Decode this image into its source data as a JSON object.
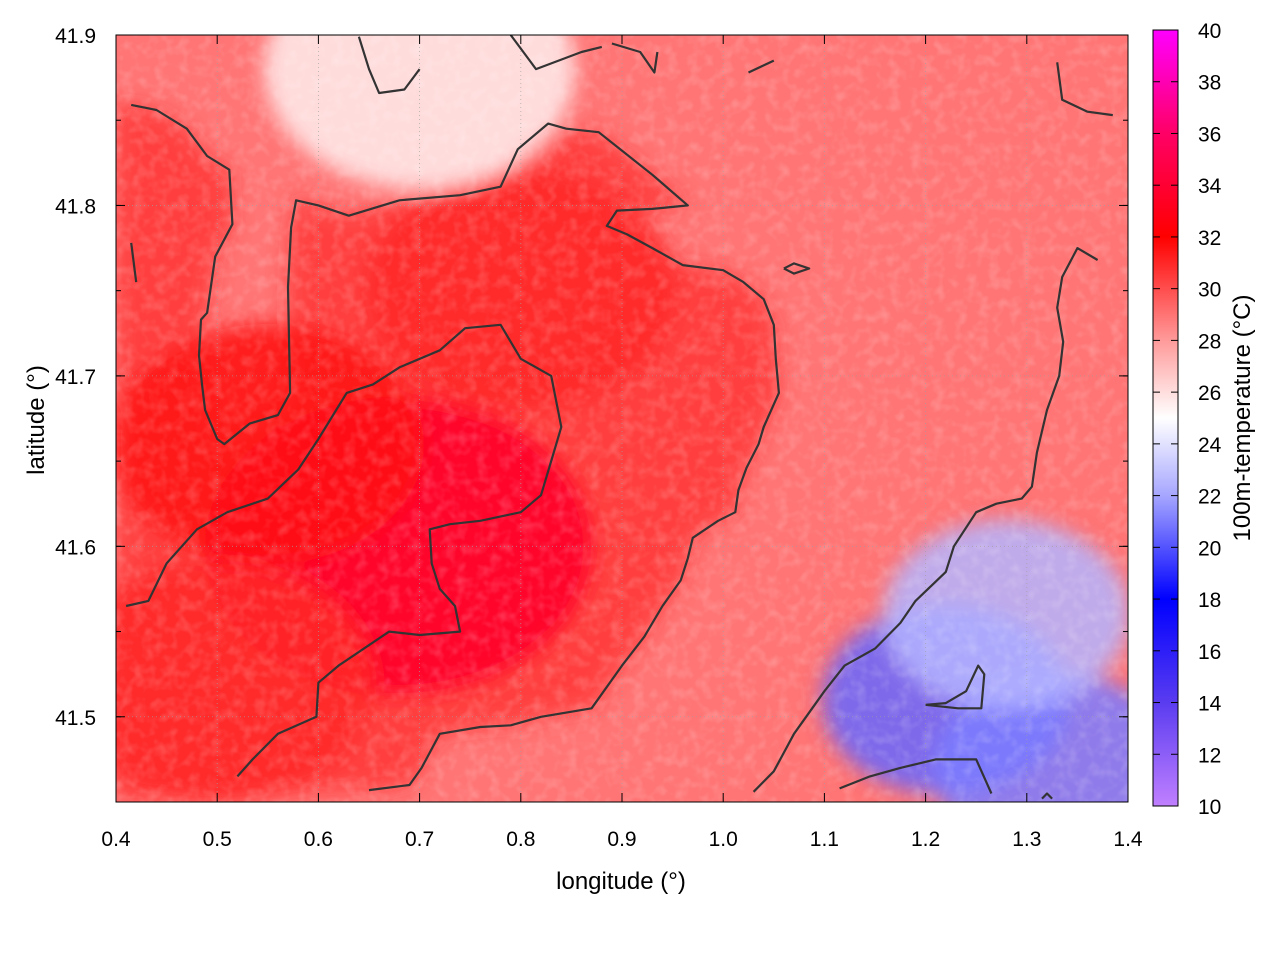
{
  "chart_data": {
    "type": "heatmap",
    "xlabel": "longitude (°)",
    "ylabel": "latitude (°)",
    "colorbar_label": "100m-temperature (°C)",
    "xlim": [
      0.4,
      1.4
    ],
    "ylim": [
      41.45,
      41.9
    ],
    "x_ticks": [
      "0.4",
      "0.5",
      "0.6",
      "0.7",
      "0.8",
      "0.9",
      "1.0",
      "1.1",
      "1.2",
      "1.3",
      "1.4"
    ],
    "y_ticks": [
      "41.5",
      "41.6",
      "41.7",
      "41.8",
      "41.9"
    ],
    "colorbar_range": [
      10,
      40
    ],
    "colorbar_ticks": [
      "10",
      "12",
      "14",
      "16",
      "18",
      "20",
      "22",
      "24",
      "26",
      "28",
      "30",
      "32",
      "34",
      "36",
      "38",
      "40"
    ],
    "colorbar_stops": [
      {
        "value": 10,
        "color": "#c080ff"
      },
      {
        "value": 14,
        "color": "#5a3cf0"
      },
      {
        "value": 18,
        "color": "#0000ff"
      },
      {
        "value": 22,
        "color": "#a6a6ff"
      },
      {
        "value": 25,
        "color": "#ffffff"
      },
      {
        "value": 28,
        "color": "#ff9a9a"
      },
      {
        "value": 32,
        "color": "#ff0000"
      },
      {
        "value": 36,
        "color": "#ff0066"
      },
      {
        "value": 40,
        "color": "#ff00ff"
      }
    ],
    "grid": true,
    "field_hotspots": [
      {
        "lon": 0.68,
        "lat": 41.6,
        "temp": 33.5
      },
      {
        "lon": 0.55,
        "lat": 41.66,
        "temp": 31.5
      },
      {
        "lon": 0.8,
        "lat": 41.75,
        "temp": 31.0
      },
      {
        "lon": 0.5,
        "lat": 41.52,
        "temp": 31.0
      },
      {
        "lon": 1.22,
        "lat": 41.51,
        "temp": 20.5
      },
      {
        "lon": 1.33,
        "lat": 41.47,
        "temp": 21.0
      },
      {
        "lon": 1.28,
        "lat": 41.56,
        "temp": 22.5
      },
      {
        "lon": 0.7,
        "lat": 41.88,
        "temp": 25.5
      }
    ],
    "contours": [
      [
        [
          0.415,
          41.859
        ],
        [
          0.44,
          41.856
        ],
        [
          0.47,
          41.845
        ],
        [
          0.49,
          41.829
        ],
        [
          0.512,
          41.821
        ],
        [
          0.515,
          41.789
        ],
        [
          0.498,
          41.77
        ],
        [
          0.49,
          41.737
        ],
        [
          0.484,
          41.733
        ],
        [
          0.482,
          41.712
        ],
        [
          0.485,
          41.695
        ],
        [
          0.488,
          41.68
        ],
        [
          0.5,
          41.663
        ],
        [
          0.507,
          41.66
        ],
        [
          0.532,
          41.672
        ],
        [
          0.56,
          41.677
        ],
        [
          0.572,
          41.69
        ],
        [
          0.57,
          41.752
        ],
        [
          0.573,
          41.787
        ],
        [
          0.578,
          41.803
        ],
        [
          0.6,
          41.8
        ],
        [
          0.63,
          41.794
        ],
        [
          0.68,
          41.803
        ],
        [
          0.74,
          41.806
        ],
        [
          0.78,
          41.811
        ],
        [
          0.797,
          41.833
        ],
        [
          0.827,
          41.848
        ],
        [
          0.845,
          41.845
        ],
        [
          0.877,
          41.843
        ],
        [
          0.93,
          41.818
        ],
        [
          0.965,
          41.8
        ],
        [
          0.93,
          41.798
        ],
        [
          0.895,
          41.797
        ],
        [
          0.885,
          41.788
        ],
        [
          0.905,
          41.783
        ],
        [
          0.93,
          41.775
        ],
        [
          0.96,
          41.765
        ],
        [
          1.0,
          41.762
        ],
        [
          1.02,
          41.755
        ],
        [
          1.04,
          41.745
        ],
        [
          1.05,
          41.73
        ],
        [
          1.052,
          41.71
        ],
        [
          1.055,
          41.69
        ],
        [
          1.04,
          41.67
        ],
        [
          1.035,
          41.66
        ],
        [
          1.023,
          41.646
        ],
        [
          1.015,
          41.633
        ],
        [
          1.012,
          41.62
        ],
        [
          0.995,
          41.615
        ],
        [
          0.97,
          41.605
        ],
        [
          0.965,
          41.593
        ],
        [
          0.958,
          41.58
        ],
        [
          0.94,
          41.565
        ],
        [
          0.922,
          41.547
        ],
        [
          0.9,
          41.53
        ],
        [
          0.87,
          41.505
        ],
        [
          0.82,
          41.5
        ],
        [
          0.79,
          41.495
        ],
        [
          0.76,
          41.494
        ],
        [
          0.72,
          41.49
        ],
        [
          0.702,
          41.47
        ],
        [
          0.69,
          41.46
        ],
        [
          0.65,
          41.457
        ]
      ],
      [
        [
          0.41,
          41.565
        ],
        [
          0.432,
          41.568
        ],
        [
          0.45,
          41.59
        ],
        [
          0.48,
          41.61
        ],
        [
          0.51,
          41.62
        ],
        [
          0.55,
          41.628
        ],
        [
          0.58,
          41.645
        ],
        [
          0.6,
          41.663
        ],
        [
          0.628,
          41.69
        ],
        [
          0.654,
          41.695
        ],
        [
          0.68,
          41.705
        ],
        [
          0.72,
          41.715
        ],
        [
          0.745,
          41.728
        ],
        [
          0.78,
          41.73
        ],
        [
          0.8,
          41.71
        ],
        [
          0.83,
          41.7
        ],
        [
          0.84,
          41.67
        ],
        [
          0.83,
          41.65
        ],
        [
          0.82,
          41.63
        ],
        [
          0.8,
          41.62
        ],
        [
          0.76,
          41.615
        ],
        [
          0.73,
          41.613
        ],
        [
          0.71,
          41.61
        ],
        [
          0.712,
          41.59
        ],
        [
          0.72,
          41.575
        ],
        [
          0.735,
          41.565
        ],
        [
          0.74,
          41.55
        ],
        [
          0.7,
          41.548
        ],
        [
          0.67,
          41.55
        ],
        [
          0.645,
          41.54
        ],
        [
          0.62,
          41.53
        ],
        [
          0.6,
          41.52
        ],
        [
          0.598,
          41.5
        ],
        [
          0.56,
          41.49
        ],
        [
          0.535,
          41.475
        ],
        [
          0.52,
          41.465
        ]
      ],
      [
        [
          0.415,
          41.778
        ],
        [
          0.42,
          41.755
        ]
      ],
      [
        [
          0.64,
          41.899
        ],
        [
          0.65,
          41.88
        ],
        [
          0.66,
          41.866
        ],
        [
          0.685,
          41.868
        ],
        [
          0.7,
          41.88
        ]
      ],
      [
        [
          0.79,
          41.9
        ],
        [
          0.815,
          41.88
        ],
        [
          0.86,
          41.89
        ],
        [
          0.88,
          41.893
        ]
      ],
      [
        [
          0.89,
          41.895
        ],
        [
          0.918,
          41.89
        ],
        [
          0.932,
          41.878
        ],
        [
          0.935,
          41.89
        ]
      ],
      [
        [
          1.025,
          41.878
        ],
        [
          1.05,
          41.885
        ]
      ],
      [
        [
          1.06,
          41.763
        ],
        [
          1.07,
          41.766
        ],
        [
          1.085,
          41.763
        ],
        [
          1.07,
          41.76
        ],
        [
          1.06,
          41.763
        ]
      ],
      [
        [
          1.33,
          41.884
        ],
        [
          1.335,
          41.862
        ],
        [
          1.36,
          41.855
        ],
        [
          1.385,
          41.853
        ]
      ],
      [
        [
          1.37,
          41.768
        ],
        [
          1.35,
          41.775
        ],
        [
          1.335,
          41.758
        ],
        [
          1.33,
          41.74
        ],
        [
          1.336,
          41.72
        ],
        [
          1.332,
          41.7
        ],
        [
          1.32,
          41.68
        ],
        [
          1.31,
          41.655
        ],
        [
          1.305,
          41.635
        ],
        [
          1.295,
          41.628
        ],
        [
          1.27,
          41.625
        ],
        [
          1.25,
          41.62
        ],
        [
          1.228,
          41.6
        ],
        [
          1.22,
          41.585
        ],
        [
          1.19,
          41.568
        ],
        [
          1.175,
          41.555
        ],
        [
          1.15,
          41.54
        ],
        [
          1.12,
          41.53
        ],
        [
          1.1,
          41.515
        ],
        [
          1.07,
          41.49
        ],
        [
          1.05,
          41.468
        ],
        [
          1.03,
          41.456
        ]
      ],
      [
        [
          1.115,
          41.458
        ],
        [
          1.145,
          41.465
        ],
        [
          1.175,
          41.47
        ],
        [
          1.21,
          41.475
        ],
        [
          1.25,
          41.475
        ],
        [
          1.265,
          41.455
        ]
      ],
      [
        [
          1.2,
          41.507
        ],
        [
          1.22,
          41.508
        ],
        [
          1.24,
          41.515
        ],
        [
          1.252,
          41.53
        ],
        [
          1.258,
          41.525
        ],
        [
          1.255,
          41.505
        ],
        [
          1.232,
          41.505
        ],
        [
          1.2,
          41.507
        ]
      ],
      [
        [
          1.315,
          41.452
        ],
        [
          1.32,
          41.455
        ],
        [
          1.325,
          41.452
        ]
      ]
    ]
  }
}
